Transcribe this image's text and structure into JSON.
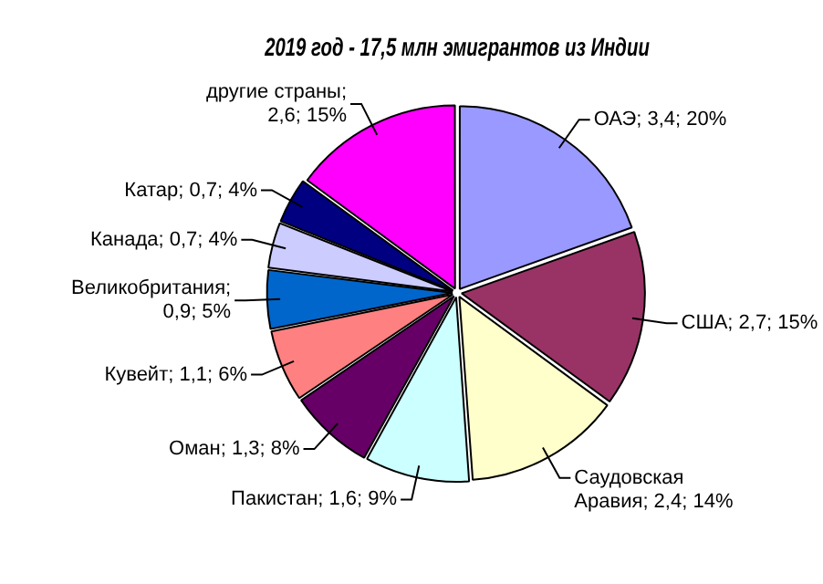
{
  "chart_data": {
    "type": "pie",
    "title": "2019 год - 17,5 млн эмигрантов из Индии",
    "categories": [
      "ОАЭ",
      "США",
      "Саудовская Аравия",
      "Пакистан",
      "Оман",
      "Кувейт",
      "Великобритания",
      "Канада",
      "Катар",
      "другие страны"
    ],
    "values": [
      3.4,
      2.7,
      2.4,
      1.6,
      1.3,
      1.1,
      0.9,
      0.7,
      0.7,
      2.6
    ],
    "value_labels": [
      "; 3,4; 20%",
      "; 2,7; 15%",
      "; 2,4; 14%",
      "; 1,6; 9%",
      "; 1,3; 8%",
      "; 1,1; 6%",
      "; 0,9; 5%",
      "; 0,7; 4%",
      "; 0,7; 4%",
      "; 2,6; 15%"
    ],
    "colors": [
      "#9999ff",
      "#993366",
      "#ffffcc",
      "#ccffff",
      "#660066",
      "#ff8080",
      "#0066cc",
      "#ccccff",
      "#000080",
      "#ff00ff"
    ],
    "legend": false
  }
}
